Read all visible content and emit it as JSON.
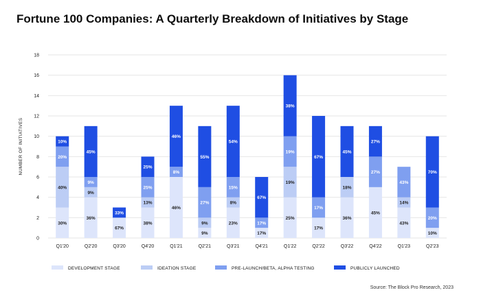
{
  "chart_data": {
    "type": "bar",
    "stacked": true,
    "title": "Fortune 100 Companies: A Quarterly Breakdown of Initiatives by Stage",
    "ylabel": "NUMBER OF INITIATIVES",
    "xlabel": "",
    "ylim": [
      0,
      18
    ],
    "yticks": [
      0,
      2,
      4,
      6,
      8,
      10,
      12,
      14,
      16,
      18
    ],
    "grid": true,
    "legend_position": "bottom",
    "categories": [
      "Q1'20",
      "Q2'20",
      "Q3'20",
      "Q4'20",
      "Q1'21",
      "Q2'21",
      "Q3'21",
      "Q4'21",
      "Q1'22",
      "Q2'22",
      "Q3'22",
      "Q4'22",
      "Q1'23",
      "Q2'23"
    ],
    "series": [
      {
        "name": "DEVELOPMENT STAGE",
        "color": "#dde5fb",
        "values": [
          3,
          4,
          2,
          3,
          6,
          1,
          3,
          1,
          4,
          2,
          4,
          5,
          3,
          1
        ],
        "labels": [
          "30%",
          "36%",
          "67%",
          "38%",
          "46%",
          "9%",
          "23%",
          "17%",
          "25%",
          "17%",
          "36%",
          "45%",
          "43%",
          "10%"
        ],
        "label_color": "#222222"
      },
      {
        "name": "IDEATION STAGE",
        "color": "#bccdf5",
        "values": [
          4,
          1,
          0,
          1,
          0,
          1,
          1,
          0,
          3,
          0,
          2,
          0,
          1,
          0
        ],
        "labels": [
          "40%",
          "9%",
          "",
          "13%",
          "",
          "9%",
          "8%",
          "",
          "19%",
          "",
          "18%",
          "",
          "14%",
          ""
        ],
        "label_color": "#222222"
      },
      {
        "name": "PRE-LAUNCH/BETA, ALPHA TESTING",
        "color": "#7f9ff0",
        "values": [
          2,
          1,
          0,
          2,
          1,
          3,
          2,
          1,
          3,
          2,
          0,
          3,
          3,
          2
        ],
        "labels": [
          "20%",
          "9%",
          "",
          "25%",
          "8%",
          "27%",
          "15%",
          "17%",
          "19%",
          "17%",
          "",
          "27%",
          "43%",
          "20%"
        ],
        "label_color": "#ffffff"
      },
      {
        "name": "PUBLICLY LAUNCHED",
        "color": "#1f4ee3",
        "values": [
          1,
          5,
          1,
          2,
          6,
          6,
          7,
          4,
          6,
          8,
          5,
          3,
          0,
          7
        ],
        "labels": [
          "10%",
          "45%",
          "33%",
          "25%",
          "46%",
          "55%",
          "54%",
          "67%",
          "38%",
          "67%",
          "45%",
          "27%",
          "",
          "70%"
        ],
        "label_color": "#ffffff"
      }
    ],
    "source": "Source: The Block Pro Research, 2023"
  }
}
